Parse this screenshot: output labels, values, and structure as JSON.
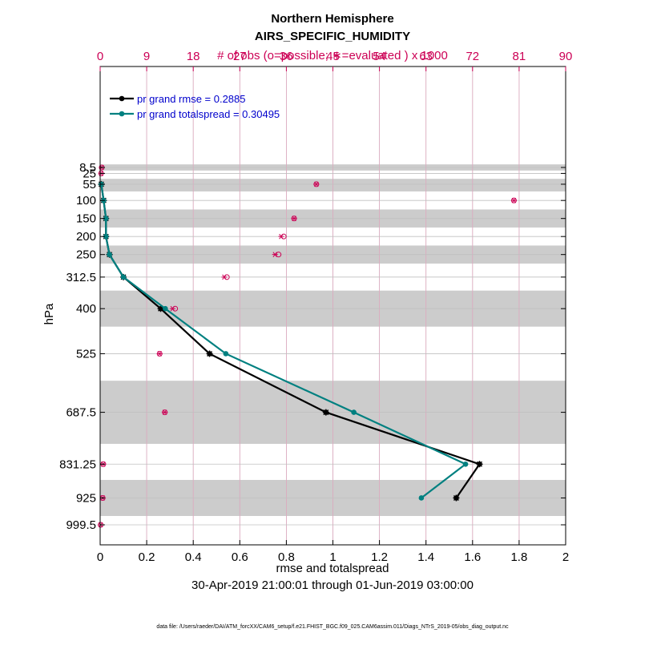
{
  "chart_data": {
    "type": "line",
    "title": "Northern Hemisphere",
    "subtitle": "AIRS_SPECIFIC_HUMIDITY",
    "top_axis_label": "# of obs (o=possible; ∗=evaluated ) x 1000",
    "xlabel": "rmse and totalspread",
    "ylabel": "hPa",
    "date_range": "30-Apr-2019 21:00:01 through 01-Jun-2019 03:00:00",
    "footer": "data file: /Users/raeder/DAI/ATM_forcXX/CAM6_setup/f.e21.FHIST_BGC.f09_025.CAM6assim.011/Diags_NTrS_2019-05/obs_diag_output.nc",
    "xlim": [
      0,
      2
    ],
    "xticks": [
      "0",
      "0.2",
      "0.4",
      "0.6",
      "0.8",
      "1",
      "1.2",
      "1.4",
      "1.6",
      "1.8",
      "2"
    ],
    "top_xlim": [
      0,
      90
    ],
    "top_xticks": [
      "0",
      "9",
      "18",
      "27",
      "36",
      "45",
      "54",
      "63",
      "72",
      "81",
      "90"
    ],
    "y_levels": [
      8.5,
      25,
      55,
      100,
      150,
      200,
      250,
      312.5,
      400,
      525,
      687.5,
      831.25,
      925,
      999.5
    ],
    "y_tick_labels": [
      "8.5",
      "25",
      "55",
      "100",
      "150",
      "200",
      "250",
      "312.5",
      "400",
      "525",
      "687.5",
      "831.25",
      "925",
      "999.5"
    ],
    "y_reversed": true,
    "shaded_layers_hPa": [
      [
        0,
        17
      ],
      [
        40,
        75
      ],
      [
        125,
        175
      ],
      [
        225,
        275
      ],
      [
        350,
        450
      ],
      [
        600,
        775
      ],
      [
        875,
        975
      ]
    ],
    "legend_position": "top-left",
    "colors": {
      "rmse": "#000000",
      "totalspread": "#008080",
      "obs": "#cc0055",
      "band": "#cccccc",
      "grid": "#c0c0c0"
    },
    "series": [
      {
        "name": "rmse",
        "legend_label": "pr grand rmse = 0.2885",
        "values": [
          null,
          null,
          0.005,
          0.015,
          0.025,
          0.025,
          0.04,
          0.1,
          0.26,
          0.47,
          0.97,
          1.63,
          1.53,
          null
        ]
      },
      {
        "name": "totalspread",
        "legend_label": "pr grand totalspread = 0.30495",
        "values": [
          null,
          null,
          0.005,
          0.015,
          0.025,
          0.025,
          0.04,
          0.1,
          0.28,
          0.54,
          1.09,
          1.57,
          1.38,
          null
        ]
      }
    ],
    "obs_possible": [
      0.3,
      0.2,
      41.8,
      80,
      37.5,
      35.5,
      34.5,
      24.5,
      14.5,
      11.5,
      12.5,
      0.6,
      0.5,
      0.1
    ],
    "obs_evaluated": [
      0.3,
      0.2,
      41.8,
      80,
      37.5,
      35,
      33.8,
      24,
      14,
      11.5,
      12.5,
      0.6,
      0.5,
      0.1
    ]
  }
}
